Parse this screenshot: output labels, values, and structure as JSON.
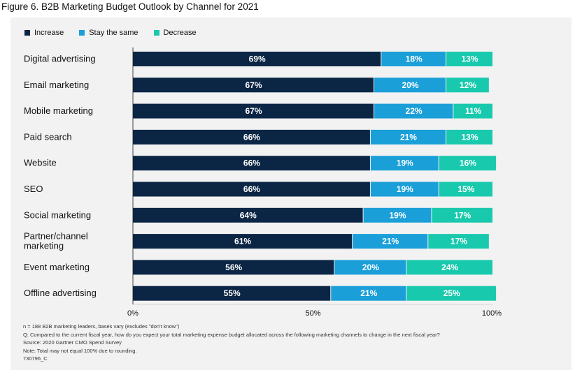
{
  "title": "Figure 6. B2B Marketing Budget Outlook by Channel for 2021",
  "colors": {
    "increase": "#0b2545",
    "same": "#1a9fd9",
    "decrease": "#19c9ad"
  },
  "legend": [
    "Increase",
    "Stay the same",
    "Decrease"
  ],
  "chart_data": {
    "type": "bar",
    "orientation": "horizontal",
    "stacked": true,
    "categories": [
      "Digital advertising",
      "Email marketing",
      "Mobile marketing",
      "Paid search",
      "Website",
      "SEO",
      "Social marketing",
      "Partner/channel marketing",
      "Event marketing",
      "Offline advertising"
    ],
    "series": [
      {
        "name": "Increase",
        "values": [
          69,
          67,
          67,
          66,
          66,
          66,
          64,
          61,
          56,
          55
        ]
      },
      {
        "name": "Stay the same",
        "values": [
          18,
          20,
          22,
          21,
          19,
          19,
          19,
          21,
          20,
          21
        ]
      },
      {
        "name": "Decrease",
        "values": [
          13,
          12,
          11,
          13,
          16,
          15,
          17,
          17,
          24,
          25
        ]
      }
    ],
    "xlim": [
      0,
      100
    ],
    "xticks": [
      "0%",
      "50%",
      "100%"
    ],
    "legend_position": "top-left"
  },
  "notes": [
    "n = 188 B2B marketing leaders, bases vary (excludes \"don't know\")",
    "Q: Compared to the current fiscal year, how do you expect your total marketing expense budget allocated across the following marketing channels to change in the next fiscal year?",
    "Source: 2020 Gartner CMO Spend Survey",
    "Note: Total may not equal 100% due to rounding.",
    "730796_C"
  ]
}
